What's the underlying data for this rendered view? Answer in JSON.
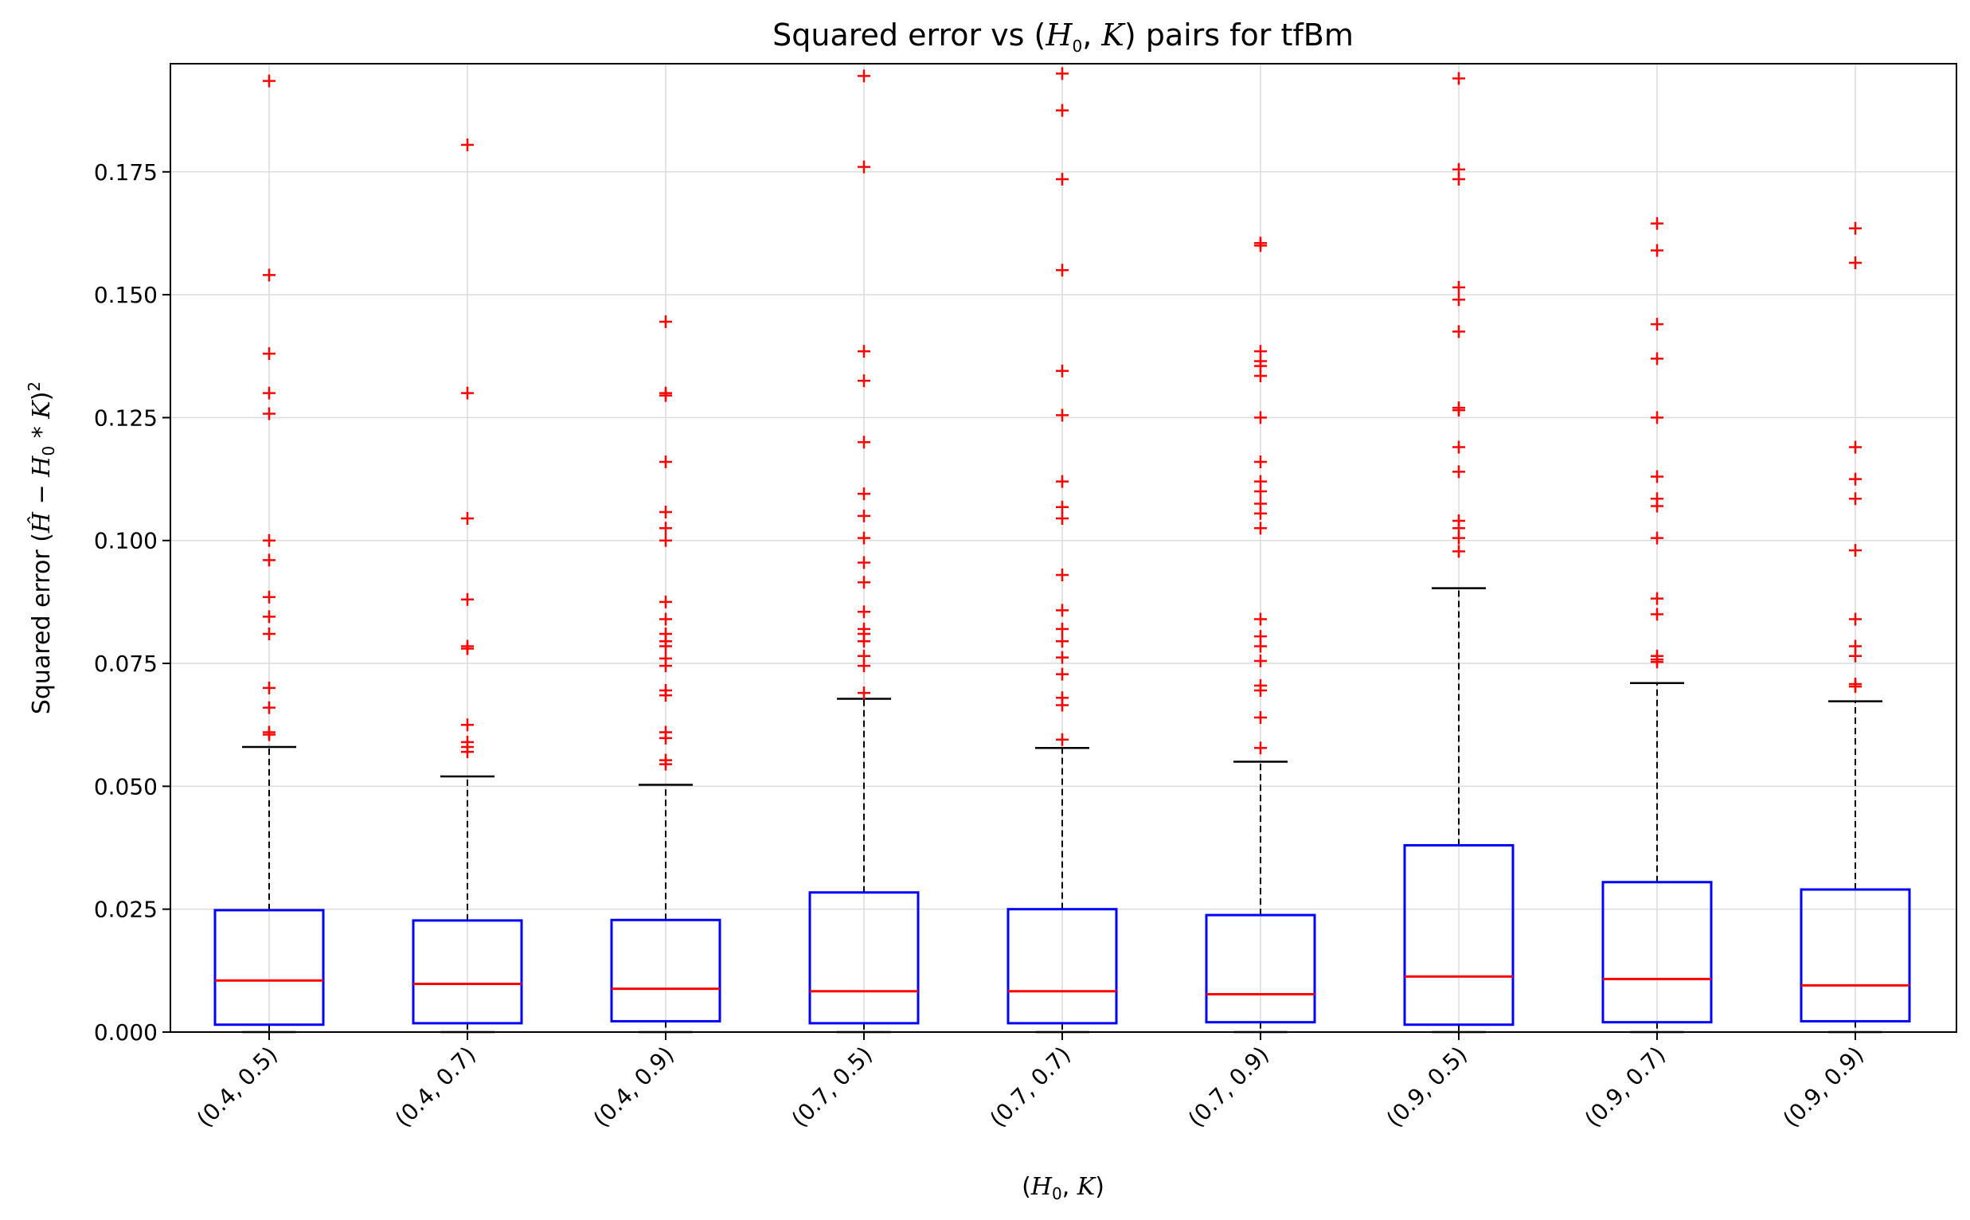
{
  "chart_data": {
    "type": "boxplot",
    "title": {
      "prefix": "Squared error vs (",
      "h": "H",
      "sub": "0",
      "mid": ", ",
      "k": "K",
      "suffix": ") pairs for tfBm"
    },
    "xlabel": {
      "open": "(",
      "h": "H",
      "sub": "0",
      "comma": ", ",
      "k": "K",
      "close": ")"
    },
    "ylabel": {
      "prefix": "Squared error (",
      "hhat": "Ĥ",
      "minus": " − ",
      "h": "H",
      "sub": "0",
      "times": " * ",
      "k": "K",
      "close": ")",
      "sup": "2"
    },
    "categories": [
      "(0.4, 0.5)",
      "(0.4, 0.7)",
      "(0.4, 0.9)",
      "(0.7, 0.5)",
      "(0.7, 0.7)",
      "(0.7, 0.9)",
      "(0.9, 0.5)",
      "(0.9, 0.7)",
      "(0.9, 0.9)"
    ],
    "ylim": [
      0,
      0.197
    ],
    "yticks": [
      0.0,
      0.025,
      0.05,
      0.075,
      0.1,
      0.125,
      0.15,
      0.175
    ],
    "ytick_labels": [
      "0.000",
      "0.025",
      "0.050",
      "0.075",
      "0.100",
      "0.125",
      "0.150",
      "0.175"
    ],
    "grid": true,
    "colors": {
      "box": "#0000ff",
      "median": "#ff0000",
      "whisker": "#000000",
      "flier": "#ff0000",
      "grid": "#dcdcdc"
    },
    "boxes": [
      {
        "whislo": 0.0,
        "q1": 0.0015,
        "med": 0.0105,
        "q3": 0.0248,
        "whishi": 0.058,
        "fliers": [
          0.1935,
          0.154,
          0.138,
          0.13,
          0.1258,
          0.1,
          0.096,
          0.0885,
          0.0845,
          0.081,
          0.07,
          0.066,
          0.061,
          0.0605
        ]
      },
      {
        "whislo": 0.0,
        "q1": 0.0018,
        "med": 0.0098,
        "q3": 0.0227,
        "whishi": 0.052,
        "fliers": [
          0.1805,
          0.13,
          0.1045,
          0.088,
          0.0785,
          0.078,
          0.0625,
          0.059,
          0.058,
          0.057
        ]
      },
      {
        "whislo": 0.0,
        "q1": 0.0022,
        "med": 0.0088,
        "q3": 0.0228,
        "whishi": 0.0503,
        "fliers": [
          0.1445,
          0.13,
          0.1295,
          0.116,
          0.1058,
          0.1025,
          0.1,
          0.0875,
          0.084,
          0.081,
          0.0795,
          0.0785,
          0.076,
          0.0745,
          0.0695,
          0.0685,
          0.061,
          0.0598,
          0.0553,
          0.0545
        ]
      },
      {
        "whislo": 0.0,
        "q1": 0.0018,
        "med": 0.0083,
        "q3": 0.0284,
        "whishi": 0.0678,
        "fliers": [
          0.1945,
          0.176,
          0.1385,
          0.1325,
          0.12,
          0.1095,
          0.105,
          0.1005,
          0.0955,
          0.0915,
          0.0855,
          0.082,
          0.081,
          0.0795,
          0.0765,
          0.0745,
          0.069
        ]
      },
      {
        "whislo": 0.0,
        "q1": 0.0018,
        "med": 0.0083,
        "q3": 0.025,
        "whishi": 0.0578,
        "fliers": [
          0.195,
          0.1875,
          0.1735,
          0.155,
          0.1345,
          0.1255,
          0.112,
          0.1068,
          0.1045,
          0.093,
          0.0858,
          0.082,
          0.0795,
          0.0762,
          0.0728,
          0.068,
          0.0665,
          0.0595
        ]
      },
      {
        "whislo": 0.0,
        "q1": 0.002,
        "med": 0.0077,
        "q3": 0.0238,
        "whishi": 0.055,
        "fliers": [
          0.1605,
          0.16,
          0.1385,
          0.1365,
          0.1355,
          0.1335,
          0.125,
          0.116,
          0.112,
          0.11,
          0.1075,
          0.1055,
          0.1025,
          0.084,
          0.0805,
          0.0785,
          0.0755,
          0.0705,
          0.0695,
          0.064,
          0.0578
        ]
      },
      {
        "whislo": 0.0,
        "q1": 0.0015,
        "med": 0.0113,
        "q3": 0.038,
        "whishi": 0.0903,
        "fliers": [
          0.194,
          0.1755,
          0.1735,
          0.1515,
          0.149,
          0.1425,
          0.127,
          0.1265,
          0.119,
          0.114,
          0.104,
          0.1025,
          0.1005,
          0.0978
        ]
      },
      {
        "whislo": 0.0,
        "q1": 0.002,
        "med": 0.0108,
        "q3": 0.0305,
        "whishi": 0.071,
        "fliers": [
          0.1645,
          0.159,
          0.144,
          0.137,
          0.125,
          0.113,
          0.1085,
          0.107,
          0.1005,
          0.0882,
          0.085,
          0.0765,
          0.0758,
          0.0753
        ]
      },
      {
        "whislo": 0.0,
        "q1": 0.0022,
        "med": 0.0095,
        "q3": 0.029,
        "whishi": 0.0673,
        "fliers": [
          0.1635,
          0.1565,
          0.119,
          0.1125,
          0.1085,
          0.098,
          0.084,
          0.0785,
          0.0765,
          0.0708,
          0.0703
        ]
      }
    ]
  }
}
